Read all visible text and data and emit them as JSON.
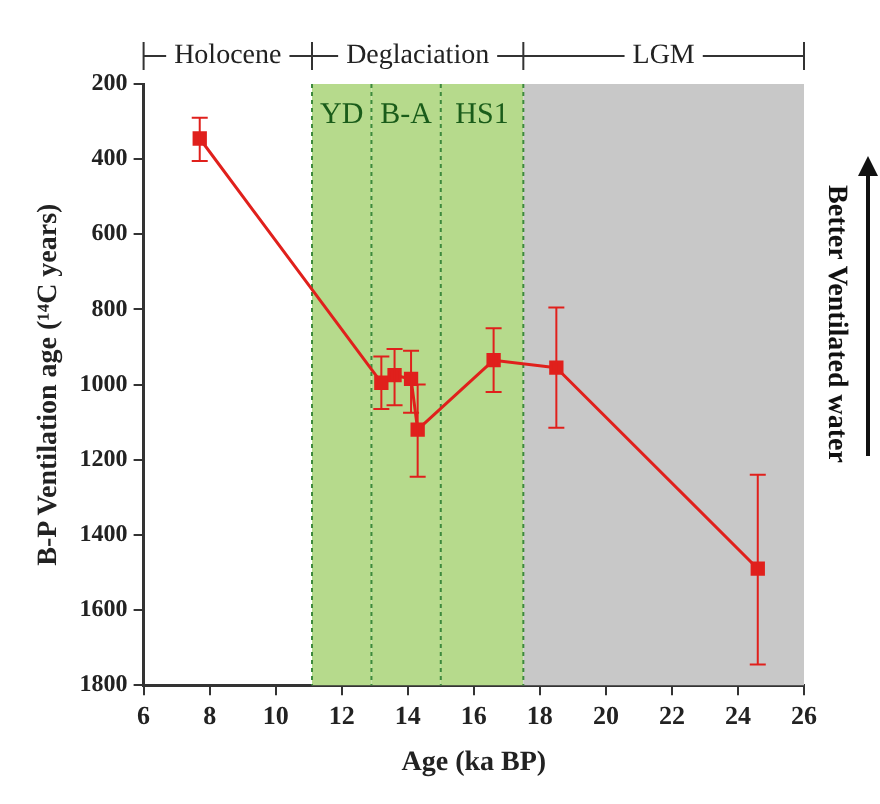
{
  "chart_data": {
    "type": "line",
    "xlabel": "Age (ka BP)",
    "ylabel": "B-P Ventilation age (¹⁴C years)",
    "x": [
      7.7,
      13.2,
      13.6,
      14.1,
      14.3,
      16.6,
      18.5,
      24.6
    ],
    "series": [
      {
        "color": "#e0201c",
        "values": [
          345,
          995,
          975,
          985,
          1120,
          935,
          955,
          1490
        ],
        "errors": [
          [
            290,
            405
          ],
          [
            925,
            1065
          ],
          [
            905,
            1055
          ],
          [
            910,
            1075
          ],
          [
            1000,
            1245
          ],
          [
            850,
            1020
          ],
          [
            795,
            1115
          ],
          [
            1240,
            1745
          ]
        ]
      }
    ],
    "xlim": [
      6,
      26
    ],
    "xticks": [
      6,
      8,
      10,
      12,
      14,
      16,
      18,
      20,
      22,
      24,
      26
    ],
    "ylim": [
      1800,
      200
    ],
    "yticks": [
      200,
      400,
      600,
      800,
      1000,
      1200,
      1400,
      1600,
      1800
    ],
    "bands": [
      {
        "axis": "x",
        "from": 11.1,
        "to": 12.9,
        "label": "YD",
        "color": "#b6da8c"
      },
      {
        "axis": "x",
        "from": 12.9,
        "to": 15,
        "label": "B-A",
        "color": "#b6da8c"
      },
      {
        "axis": "x",
        "from": 15,
        "to": 17.5,
        "label": "HS1",
        "color": "#b6da8c"
      },
      {
        "axis": "x",
        "from": 17.5,
        "to": 26,
        "color": "#c8c8c8"
      }
    ],
    "ref_lines": [
      {
        "axis": "x",
        "value": 11.1,
        "color": "#3d8a3d",
        "line_style": "dotted"
      },
      {
        "axis": "x",
        "value": 12.9,
        "color": "#3d8a3d",
        "line_style": "dotted"
      },
      {
        "axis": "x",
        "value": 15,
        "color": "#3d8a3d",
        "line_style": "dotted"
      },
      {
        "axis": "x",
        "value": 17.5,
        "color": "#3d8a3d",
        "line_style": "dotted"
      }
    ],
    "annotations": [
      "Holocene",
      "Deglaciation",
      "LGM",
      "Better Ventilated water"
    ],
    "marker": "square",
    "grid": false,
    "legend": false
  }
}
